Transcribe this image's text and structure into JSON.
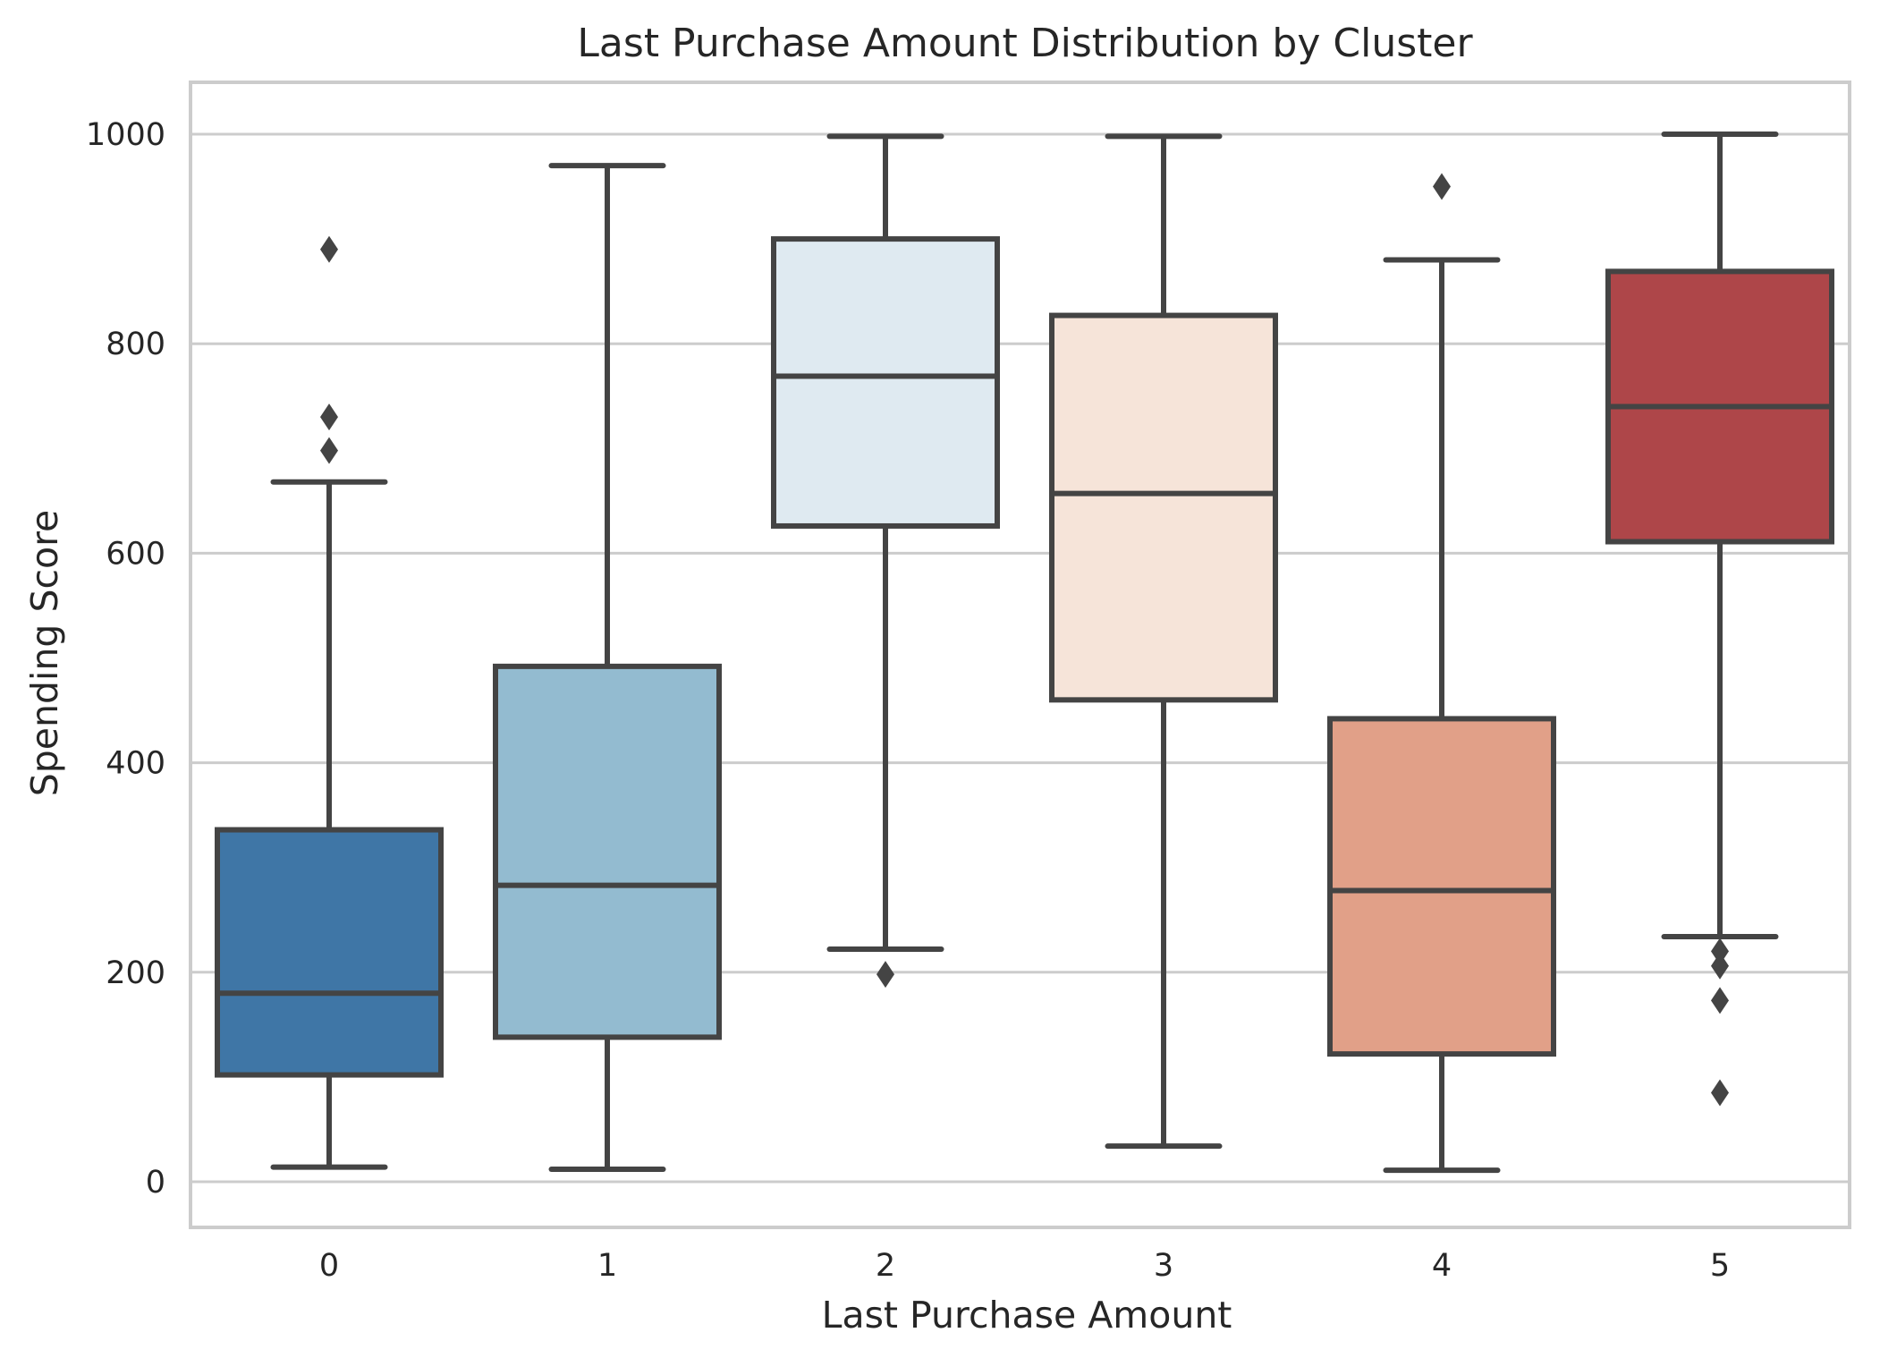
{
  "chart_data": {
    "type": "boxplot",
    "title": "Last Purchase Amount Distribution by Cluster",
    "xlabel": "Last Purchase Amount",
    "ylabel": "Spending Score",
    "ylim": [
      -40,
      1050
    ],
    "yticks": [
      0,
      200,
      400,
      600,
      800,
      1000
    ],
    "grid": "horizontal",
    "legend": "none",
    "edge_color": "#444444",
    "grid_color": "#cccccc",
    "categories": [
      "0",
      "1",
      "2",
      "3",
      "4",
      "5"
    ],
    "series": [
      {
        "category": "0",
        "color": "#3f76a6",
        "whisker_low": 14,
        "q1": 102,
        "median": 180,
        "q3": 336,
        "whisker_high": 668,
        "outliers": [
          698,
          730,
          890
        ]
      },
      {
        "category": "1",
        "color": "#93bbd0",
        "whisker_low": 12,
        "q1": 138,
        "median": 283,
        "q3": 492,
        "whisker_high": 970,
        "outliers": []
      },
      {
        "category": "2",
        "color": "#dfeaf1",
        "whisker_low": 222,
        "q1": 626,
        "median": 769,
        "q3": 900,
        "whisker_high": 998,
        "outliers": [
          198
        ]
      },
      {
        "category": "3",
        "color": "#f6e4d9",
        "whisker_low": 34,
        "q1": 460,
        "median": 657,
        "q3": 827,
        "whisker_high": 998,
        "outliers": []
      },
      {
        "category": "4",
        "color": "#e1a088",
        "whisker_low": 11,
        "q1": 122,
        "median": 278,
        "q3": 442,
        "whisker_high": 880,
        "outliers": [
          950
        ]
      },
      {
        "category": "5",
        "color": "#ae4649",
        "whisker_low": 234,
        "q1": 611,
        "median": 740,
        "q3": 869,
        "whisker_high": 1000,
        "outliers": [
          85,
          173,
          206,
          220
        ]
      }
    ]
  }
}
